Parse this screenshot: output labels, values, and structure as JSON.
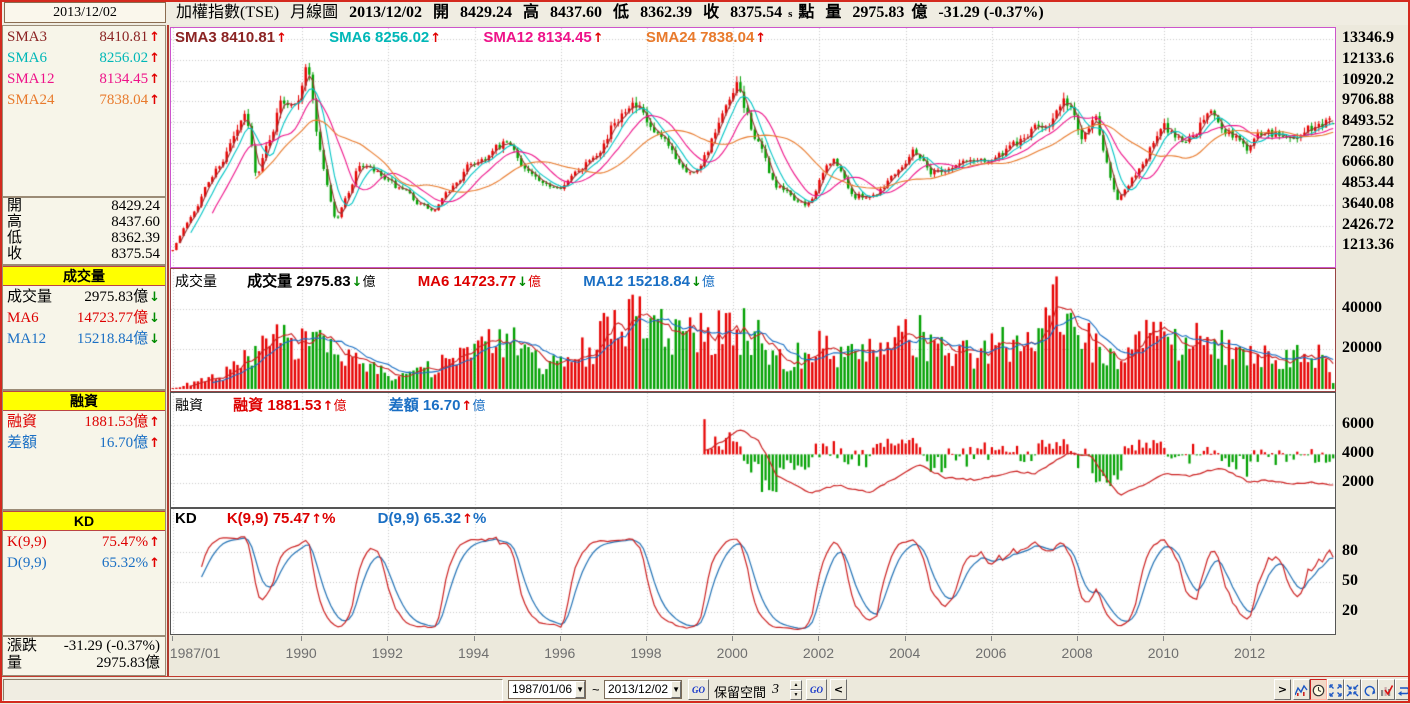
{
  "header": {
    "cursor_date": "2013/12/02",
    "symbol": "加權指數(TSE)",
    "period": "月線圖",
    "date": "2013/12/02",
    "o_label": "開",
    "o": "8429.24",
    "h_label": "高",
    "h": "8437.60",
    "l_label": "低",
    "l": "8362.39",
    "c_label": "收",
    "c": "8375.54",
    "s_flag": "s",
    "point_label": "點",
    "v_label": "量",
    "v": "2975.83",
    "v_unit": "億",
    "change": "-31.29 (-0.37%)"
  },
  "sidebar": {
    "sma": {
      "rows": [
        {
          "label": "SMA3",
          "value": "8410.81",
          "arrow": "↑",
          "color": "#8b2323"
        },
        {
          "label": "SMA6",
          "value": "8256.02",
          "arrow": "↑",
          "color": "#00b7b7"
        },
        {
          "label": "SMA12",
          "value": "8134.45",
          "arrow": "↑",
          "color": "#ee1289"
        },
        {
          "label": "SMA24",
          "value": "7838.04",
          "arrow": "↑",
          "color": "#e87a2c"
        }
      ]
    },
    "ohlc": {
      "rows": [
        {
          "label": "開",
          "value": "8429.24"
        },
        {
          "label": "高",
          "value": "8437.60"
        },
        {
          "label": "低",
          "value": "8362.39"
        },
        {
          "label": "收",
          "value": "8375.54"
        }
      ]
    },
    "volume_sec": {
      "title": "成交量",
      "rows": [
        {
          "label": "成交量",
          "value": "2975.83億",
          "arrow": "↓",
          "color": "#000000"
        },
        {
          "label": "MA6",
          "value": "14723.77億",
          "arrow": "↓",
          "color": "#dd0000"
        },
        {
          "label": "MA12",
          "value": "15218.84億",
          "arrow": "↓",
          "color": "#1a6fc4"
        }
      ]
    },
    "margin_sec": {
      "title": "融資",
      "rows": [
        {
          "label": "融資",
          "value": "1881.53億",
          "arrow": "↑",
          "color": "#dd0000"
        },
        {
          "label": "差額",
          "value": "16.70億",
          "arrow": "↑",
          "color": "#1a6fc4"
        }
      ]
    },
    "kd_sec": {
      "title": "KD",
      "rows": [
        {
          "label": "K(9,9)",
          "value": "75.47%",
          "arrow": "↑",
          "color": "#dd0000"
        },
        {
          "label": "D(9,9)",
          "value": "65.32%",
          "arrow": "↑",
          "color": "#1a6fc4"
        }
      ]
    },
    "footer": {
      "rows": [
        {
          "label": "漲跌",
          "value": "-31.29 (-0.37%)"
        },
        {
          "label": "量",
          "value": "2975.83億"
        }
      ]
    }
  },
  "price_panel": {
    "legend": [
      {
        "label": "SMA3",
        "value": "8410.81",
        "arrow": "↑"
      },
      {
        "label": "SMA6",
        "value": "8256.02",
        "arrow": "↑"
      },
      {
        "label": "SMA12",
        "value": "8134.45",
        "arrow": "↑"
      },
      {
        "label": "SMA24",
        "value": "7838.04",
        "arrow": "↑"
      }
    ],
    "axis": [
      "13346.9",
      "12133.6",
      "10920.2",
      "9706.88",
      "8493.52",
      "7280.16",
      "6066.80",
      "4853.44",
      "3640.08",
      "2426.72",
      "1213.36"
    ]
  },
  "volume_panel": {
    "name": "成交量",
    "items": [
      {
        "label": "成交量",
        "value": "2975.83",
        "arrow": "↓",
        "unit": "億"
      },
      {
        "label": "MA6",
        "value": "14723.77",
        "arrow": "↓",
        "unit": "億"
      },
      {
        "label": "MA12",
        "value": "15218.84",
        "arrow": "↓",
        "unit": "億"
      }
    ],
    "axis": [
      "40000",
      "20000"
    ]
  },
  "margin_panel": {
    "name": "融資",
    "items": [
      {
        "label": "融資",
        "value": "1881.53",
        "arrow": "↑",
        "unit": "億"
      },
      {
        "label": "差額",
        "value": "16.70",
        "arrow": "↑",
        "unit": "億"
      }
    ],
    "axis": [
      "6000",
      "4000",
      "2000"
    ]
  },
  "kd_panel": {
    "name": "KD",
    "items": [
      {
        "label": "K(9,9)",
        "value": "75.47",
        "arrow": "↑",
        "unit": "%"
      },
      {
        "label": "D(9,9)",
        "value": "65.32",
        "arrow": "↑",
        "unit": "%"
      }
    ],
    "axis": [
      "80",
      "50",
      "20"
    ]
  },
  "toolbar": {
    "from_date": "1987/01/06",
    "separator": "~",
    "to_date": "2013/12/02",
    "dropdown_arrow": "▼",
    "go_label": "GO",
    "reserve_label": "保留空間",
    "reserve_value": "3",
    "left_arrow": "<",
    "right_arrow": ">",
    "icons": [
      "line-chart-icon",
      "clock-icon",
      "expand-icon",
      "contract-icon",
      "undo-icon",
      "chart-check-icon",
      "loop-icon"
    ]
  },
  "colors": {
    "candle_up": "#e60000",
    "candle_down": "#00a000",
    "sma": [
      "#993333",
      "#00c5c5",
      "#ee1289",
      "#e87a2c"
    ],
    "vol_ma6": "#cc2222",
    "vol_ma12": "#1a6fc4",
    "margin_line": "#cc2222",
    "k_line": "#cc2222",
    "d_line": "#2272b5",
    "section_header_bg": "#ffff00",
    "window_border": "#d42a1e"
  },
  "chart_data": {
    "type": "candlestick",
    "title": "加權指數(TSE) 月線圖",
    "months": 324,
    "start": "1987/01",
    "end": "2013/12",
    "price_axis_ticks": [
      13346.9,
      12133.6,
      10920.2,
      9706.88,
      8493.52,
      7280.16,
      6066.8,
      4853.44,
      3640.08,
      2426.72,
      1213.36
    ],
    "price_domain": [
      0,
      14000
    ],
    "close_anchors": [
      [
        1987.0,
        1040
      ],
      [
        1987.75,
        4580
      ],
      [
        1988.7,
        8780
      ],
      [
        1988.95,
        5200
      ],
      [
        1989.5,
        9600
      ],
      [
        1989.9,
        10200
      ],
      [
        1990.1,
        12400
      ],
      [
        1990.4,
        7000
      ],
      [
        1990.78,
        2620
      ],
      [
        1991.35,
        6100
      ],
      [
        1992.0,
        4900
      ],
      [
        1993.05,
        3180
      ],
      [
        1993.9,
        6000
      ],
      [
        1994.75,
        7150
      ],
      [
        1995.6,
        4600
      ],
      [
        1996.2,
        5050
      ],
      [
        1997.1,
        7800
      ],
      [
        1997.6,
        10050
      ],
      [
        1998.1,
        7850
      ],
      [
        1998.7,
        6300
      ],
      [
        1999.1,
        5500
      ],
      [
        2000.1,
        10300
      ],
      [
        2000.95,
        4800
      ],
      [
        2001.7,
        3500
      ],
      [
        2002.3,
        6350
      ],
      [
        2002.8,
        4100
      ],
      [
        2003.3,
        4300
      ],
      [
        2004.2,
        7000
      ],
      [
        2004.6,
        5600
      ],
      [
        2005.3,
        6100
      ],
      [
        2006.3,
        6600
      ],
      [
        2007.8,
        9650
      ],
      [
        2008.05,
        7600
      ],
      [
        2008.4,
        9100
      ],
      [
        2008.9,
        4100
      ],
      [
        2009.15,
        4600
      ],
      [
        2009.95,
        8100
      ],
      [
        2010.5,
        7350
      ],
      [
        2011.05,
        9100
      ],
      [
        2011.95,
        6950
      ],
      [
        2012.25,
        7900
      ],
      [
        2012.9,
        7550
      ],
      [
        2013.4,
        8100
      ],
      [
        2013.92,
        8375.54
      ]
    ],
    "last_candle": {
      "open": 8429.24,
      "high": 8437.6,
      "low": 8362.39,
      "close": 8375.54
    },
    "sma": {
      "periods": [
        3,
        6,
        12,
        24
      ],
      "values": [
        8410.81,
        8256.02,
        8134.45,
        7838.04
      ]
    },
    "volume": {
      "axis_ticks": [
        40000,
        20000
      ],
      "domain": [
        0,
        52000
      ],
      "anchors": [
        [
          1987.0,
          400
        ],
        [
          1988.0,
          5500
        ],
        [
          1989.0,
          17000
        ],
        [
          1989.8,
          26000
        ],
        [
          1990.5,
          20000
        ],
        [
          1991.0,
          14000
        ],
        [
          1992.0,
          7500
        ],
        [
          1993.0,
          9500
        ],
        [
          1994.0,
          19000
        ],
        [
          1994.8,
          23000
        ],
        [
          1995.5,
          13000
        ],
        [
          1996.0,
          11000
        ],
        [
          1997.0,
          26000
        ],
        [
          1997.6,
          38000
        ],
        [
          1998.0,
          29000
        ],
        [
          1999.0,
          25000
        ],
        [
          2000.0,
          30000
        ],
        [
          2000.7,
          23000
        ],
        [
          2001.3,
          15000
        ],
        [
          2002.0,
          21000
        ],
        [
          2002.8,
          16000
        ],
        [
          2003.5,
          19000
        ],
        [
          2004.3,
          26000
        ],
        [
          2005.0,
          16000
        ],
        [
          2006.0,
          20000
        ],
        [
          2007.0,
          27000
        ],
        [
          2007.6,
          42000
        ],
        [
          2008.0,
          26000
        ],
        [
          2008.8,
          14000
        ],
        [
          2009.5,
          24000
        ],
        [
          2010.0,
          26000
        ],
        [
          2010.8,
          24000
        ],
        [
          2011.2,
          22000
        ],
        [
          2012.0,
          15000
        ],
        [
          2012.8,
          15000
        ],
        [
          2013.5,
          16500
        ],
        [
          2013.92,
          10000
        ]
      ],
      "last": 2975.83,
      "ma_periods": [
        6,
        12
      ],
      "ma_values": [
        14723.77,
        15218.84
      ]
    },
    "margin": {
      "axis_ticks": [
        6000,
        4000,
        2000
      ],
      "domain": [
        500,
        7000
      ],
      "baseline": 4000,
      "start_year": 1999.33,
      "line_anchors": [
        [
          1999.4,
          4300
        ],
        [
          1999.8,
          5000
        ],
        [
          2000.15,
          5750
        ],
        [
          2000.6,
          4900
        ],
        [
          2001.0,
          2600
        ],
        [
          2001.8,
          1300
        ],
        [
          2002.4,
          1900
        ],
        [
          2002.9,
          1500
        ],
        [
          2003.2,
          1400
        ],
        [
          2004.3,
          3300
        ],
        [
          2004.9,
          2400
        ],
        [
          2005.6,
          2250
        ],
        [
          2006.5,
          2800
        ],
        [
          2007.0,
          2700
        ],
        [
          2007.8,
          4100
        ],
        [
          2008.3,
          3900
        ],
        [
          2008.95,
          1150
        ],
        [
          2009.6,
          2000
        ],
        [
          2010.0,
          2700
        ],
        [
          2010.6,
          2500
        ],
        [
          2011.3,
          3100
        ],
        [
          2011.95,
          2100
        ],
        [
          2012.4,
          2200
        ],
        [
          2012.95,
          1950
        ],
        [
          2013.4,
          2050
        ],
        [
          2013.92,
          1881.53
        ]
      ],
      "last": 1881.53,
      "diff_last": 16.7
    },
    "kd": {
      "axis_ticks": [
        80,
        50,
        20
      ],
      "period": 9,
      "k": 75.47,
      "d": 65.32
    },
    "x_ticks": [
      {
        "label": "1987/01",
        "month": 0
      },
      {
        "label": "1990",
        "month": 36
      },
      {
        "label": "1992",
        "month": 60
      },
      {
        "label": "1994",
        "month": 84
      },
      {
        "label": "1996",
        "month": 108
      },
      {
        "label": "1998",
        "month": 132
      },
      {
        "label": "2000",
        "month": 156
      },
      {
        "label": "2002",
        "month": 180
      },
      {
        "label": "2004",
        "month": 204
      },
      {
        "label": "2006",
        "month": 228
      },
      {
        "label": "2008",
        "month": 252
      },
      {
        "label": "2010",
        "month": 276
      },
      {
        "label": "2012",
        "month": 300
      }
    ]
  }
}
